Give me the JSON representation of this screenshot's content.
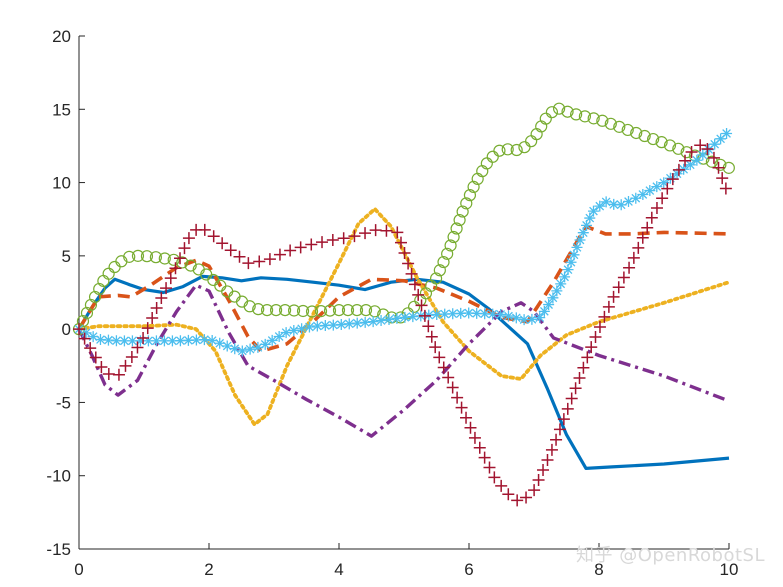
{
  "chart_data": {
    "type": "line",
    "title": "",
    "xlabel": "",
    "ylabel": "",
    "xlim": [
      0,
      10
    ],
    "ylim": [
      -15,
      20
    ],
    "xticks": [
      0,
      2,
      4,
      6,
      8,
      10
    ],
    "yticks": [
      -15,
      -10,
      -5,
      0,
      5,
      10,
      15,
      20
    ],
    "grid": false,
    "legend": "none",
    "series": [
      {
        "color": "#0072BD",
        "style": "solid-dots",
        "marker": "none",
        "points": [
          [
            0,
            0
          ],
          [
            0.2,
            1.5
          ],
          [
            0.4,
            2.8
          ],
          [
            0.55,
            3.4
          ],
          [
            0.8,
            3.0
          ],
          [
            1.0,
            2.7
          ],
          [
            1.3,
            2.5
          ],
          [
            1.6,
            2.9
          ],
          [
            1.9,
            3.6
          ],
          [
            2.2,
            3.5
          ],
          [
            2.5,
            3.3
          ],
          [
            2.8,
            3.5
          ],
          [
            3.2,
            3.4
          ],
          [
            3.6,
            3.2
          ],
          [
            4.0,
            3.0
          ],
          [
            4.4,
            2.7
          ],
          [
            4.8,
            3.2
          ],
          [
            5.2,
            3.4
          ],
          [
            5.6,
            3.2
          ],
          [
            6.0,
            2.4
          ],
          [
            6.3,
            1.4
          ],
          [
            6.6,
            0.2
          ],
          [
            6.9,
            -1.0
          ],
          [
            7.2,
            -4.0
          ],
          [
            7.5,
            -7.2
          ],
          [
            7.8,
            -9.5
          ],
          [
            8.2,
            -9.4
          ],
          [
            9.0,
            -9.2
          ],
          [
            10.0,
            -8.8
          ]
        ]
      },
      {
        "color": "#D95319",
        "style": "dashed",
        "marker": "none",
        "points": [
          [
            0,
            0
          ],
          [
            0.3,
            2.2
          ],
          [
            0.6,
            2.3
          ],
          [
            0.8,
            2.2
          ],
          [
            1.1,
            3.0
          ],
          [
            1.5,
            4.2
          ],
          [
            1.8,
            4.7
          ],
          [
            2.0,
            4.3
          ],
          [
            2.3,
            2.0
          ],
          [
            2.6,
            -0.5
          ],
          [
            2.8,
            -1.5
          ],
          [
            3.2,
            -1.0
          ],
          [
            3.6,
            0.5
          ],
          [
            4.0,
            2.2
          ],
          [
            4.5,
            3.4
          ],
          [
            5.0,
            3.3
          ],
          [
            5.5,
            2.8
          ],
          [
            6.0,
            1.9
          ],
          [
            6.5,
            0.8
          ],
          [
            6.9,
            0.5
          ],
          [
            7.3,
            3.2
          ],
          [
            7.6,
            5.5
          ],
          [
            7.8,
            7.0
          ],
          [
            8.1,
            6.5
          ],
          [
            8.5,
            6.5
          ],
          [
            9.0,
            6.6
          ],
          [
            10.0,
            6.5
          ]
        ]
      },
      {
        "color": "#EDB120",
        "style": "dotted",
        "marker": "none",
        "points": [
          [
            0,
            0
          ],
          [
            0.3,
            0.2
          ],
          [
            0.6,
            0.2
          ],
          [
            1.0,
            0.2
          ],
          [
            1.5,
            0.3
          ],
          [
            1.8,
            0
          ],
          [
            2.1,
            -1.5
          ],
          [
            2.4,
            -4.5
          ],
          [
            2.7,
            -6.5
          ],
          [
            2.9,
            -5.8
          ],
          [
            3.2,
            -2.5
          ],
          [
            3.6,
            1.0
          ],
          [
            4.0,
            4.5
          ],
          [
            4.3,
            7.2
          ],
          [
            4.55,
            8.2
          ],
          [
            4.8,
            7.0
          ],
          [
            5.2,
            3.5
          ],
          [
            5.6,
            0.5
          ],
          [
            6.0,
            -1.5
          ],
          [
            6.5,
            -3.2
          ],
          [
            6.8,
            -3.4
          ],
          [
            7.1,
            -1.8
          ],
          [
            7.5,
            -0.4
          ],
          [
            8.0,
            0.5
          ],
          [
            9.0,
            1.8
          ],
          [
            10.0,
            3.2
          ]
        ]
      },
      {
        "color": "#7E2F8E",
        "style": "dashdot",
        "marker": "none",
        "points": [
          [
            0,
            0
          ],
          [
            0.2,
            -1.8
          ],
          [
            0.4,
            -3.8
          ],
          [
            0.6,
            -4.5
          ],
          [
            0.9,
            -3.5
          ],
          [
            1.2,
            -1.0
          ],
          [
            1.5,
            1.2
          ],
          [
            1.8,
            3.0
          ],
          [
            2.0,
            2.6
          ],
          [
            2.3,
            -0.2
          ],
          [
            2.6,
            -2.5
          ],
          [
            3.0,
            -3.5
          ],
          [
            3.5,
            -4.8
          ],
          [
            4.0,
            -6.0
          ],
          [
            4.5,
            -7.3
          ],
          [
            5.0,
            -5.5
          ],
          [
            5.5,
            -3.5
          ],
          [
            6.0,
            -1.0
          ],
          [
            6.5,
            1.2
          ],
          [
            6.8,
            1.8
          ],
          [
            7.0,
            1.2
          ],
          [
            7.3,
            -0.6
          ],
          [
            8.0,
            -1.8
          ],
          [
            9.0,
            -3.2
          ],
          [
            10.0,
            -4.9
          ]
        ]
      },
      {
        "color": "#77AC30",
        "style": "markers",
        "marker": "circle",
        "points": [
          [
            0,
            0
          ],
          [
            0.2,
            1.8
          ],
          [
            0.4,
            3.5
          ],
          [
            0.6,
            4.5
          ],
          [
            0.8,
            5.0
          ],
          [
            1.0,
            5.0
          ],
          [
            1.2,
            4.9
          ],
          [
            1.5,
            4.7
          ],
          [
            1.8,
            4.2
          ],
          [
            2.0,
            3.6
          ],
          [
            2.3,
            2.5
          ],
          [
            2.6,
            1.6
          ],
          [
            2.8,
            1.3
          ],
          [
            3.2,
            1.3
          ],
          [
            3.6,
            1.2
          ],
          [
            4.0,
            1.3
          ],
          [
            4.5,
            1.3
          ],
          [
            4.8,
            0.8
          ],
          [
            5.0,
            0.8
          ],
          [
            5.3,
            2.2
          ],
          [
            5.5,
            3.5
          ],
          [
            5.7,
            5.5
          ],
          [
            5.9,
            8.0
          ],
          [
            6.1,
            10.0
          ],
          [
            6.3,
            11.5
          ],
          [
            6.5,
            12.3
          ],
          [
            6.8,
            12.2
          ],
          [
            7.0,
            13.0
          ],
          [
            7.2,
            14.5
          ],
          [
            7.35,
            15.1
          ],
          [
            7.6,
            14.7
          ],
          [
            8.0,
            14.3
          ],
          [
            8.5,
            13.5
          ],
          [
            9.0,
            12.7
          ],
          [
            9.5,
            11.8
          ],
          [
            10.0,
            11.0
          ]
        ]
      },
      {
        "color": "#4DBEEE",
        "style": "markers",
        "marker": "asterisk",
        "points": [
          [
            0,
            0
          ],
          [
            0.3,
            -0.7
          ],
          [
            0.6,
            -0.8
          ],
          [
            1.0,
            -0.8
          ],
          [
            1.5,
            -0.8
          ],
          [
            2.0,
            -0.7
          ],
          [
            2.5,
            -1.5
          ],
          [
            2.8,
            -1.2
          ],
          [
            3.2,
            -0.2
          ],
          [
            3.6,
            0.2
          ],
          [
            4.0,
            0.3
          ],
          [
            4.5,
            0.5
          ],
          [
            5.0,
            0.8
          ],
          [
            5.5,
            1.0
          ],
          [
            6.0,
            1.1
          ],
          [
            6.5,
            1.0
          ],
          [
            6.9,
            0.6
          ],
          [
            7.1,
            0.8
          ],
          [
            7.3,
            2.2
          ],
          [
            7.5,
            3.8
          ],
          [
            7.7,
            6.0
          ],
          [
            7.9,
            8.0
          ],
          [
            8.1,
            8.7
          ],
          [
            8.3,
            8.4
          ],
          [
            8.6,
            9.0
          ],
          [
            9.0,
            10.0
          ],
          [
            9.5,
            11.5
          ],
          [
            10.0,
            13.5
          ]
        ]
      },
      {
        "color": "#A2142F",
        "style": "markers",
        "marker": "plus",
        "points": [
          [
            0,
            0
          ],
          [
            0.2,
            -1.5
          ],
          [
            0.4,
            -3.0
          ],
          [
            0.6,
            -3.2
          ],
          [
            0.8,
            -2.0
          ],
          [
            1.0,
            -0.5
          ],
          [
            1.2,
            1.5
          ],
          [
            1.5,
            4.3
          ],
          [
            1.7,
            6.3
          ],
          [
            1.85,
            7.0
          ],
          [
            2.0,
            6.6
          ],
          [
            2.3,
            5.5
          ],
          [
            2.6,
            4.5
          ],
          [
            2.9,
            4.7
          ],
          [
            3.2,
            5.3
          ],
          [
            3.5,
            5.7
          ],
          [
            3.8,
            6.0
          ],
          [
            4.2,
            6.3
          ],
          [
            4.6,
            6.8
          ],
          [
            4.9,
            6.6
          ],
          [
            5.1,
            4.0
          ],
          [
            5.3,
            1.2
          ],
          [
            5.5,
            -1.5
          ],
          [
            5.8,
            -4.5
          ],
          [
            6.1,
            -7.5
          ],
          [
            6.4,
            -10.2
          ],
          [
            6.65,
            -11.5
          ],
          [
            6.8,
            -11.8
          ],
          [
            7.0,
            -11.0
          ],
          [
            7.3,
            -8.0
          ],
          [
            7.6,
            -4.5
          ],
          [
            7.9,
            -1.0
          ],
          [
            8.2,
            2.0
          ],
          [
            8.5,
            4.5
          ],
          [
            8.8,
            7.5
          ],
          [
            9.1,
            10.0
          ],
          [
            9.4,
            12.0
          ],
          [
            9.6,
            12.7
          ],
          [
            9.8,
            11.5
          ],
          [
            10.0,
            9.0
          ]
        ]
      }
    ]
  },
  "watermark": "知乎 @OpenRobotSL"
}
